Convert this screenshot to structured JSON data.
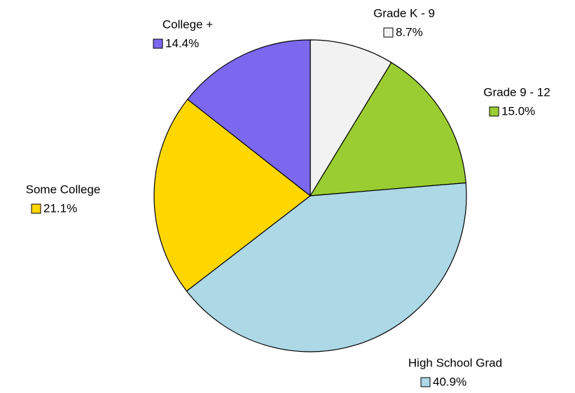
{
  "chart_data": {
    "type": "pie",
    "categories": [
      "Grade K - 9",
      "Grade 9 - 12",
      "High School Grad",
      "Some College",
      "College +"
    ],
    "values": [
      8.7,
      15.0,
      40.9,
      21.1,
      14.4
    ],
    "value_labels": [
      "8.7%",
      "15.0%",
      "40.9%",
      "21.1%",
      "14.4%"
    ],
    "colors": [
      "#f2f2f2",
      "#9acd32",
      "#add8e6",
      "#ffd700",
      "#7b68ee"
    ]
  }
}
